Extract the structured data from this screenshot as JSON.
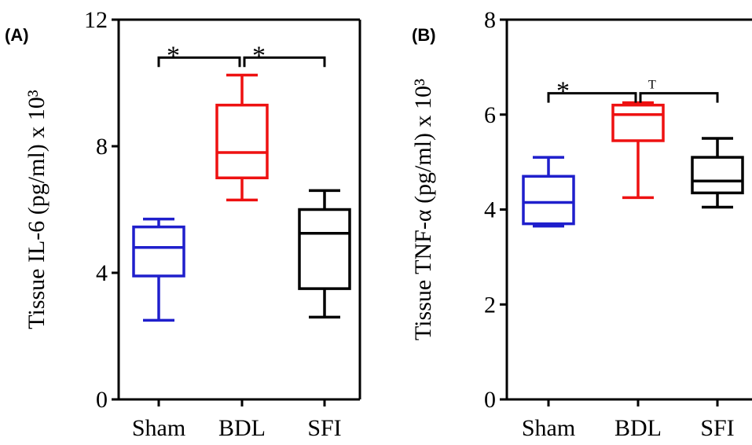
{
  "chart_data": [
    {
      "type": "box",
      "panel_label": "(A)",
      "ylabel": "Tissue IL-6 (pg/ml) x 10³",
      "ylim": [
        0,
        12
      ],
      "yticks": [
        0,
        4,
        8,
        12
      ],
      "categories": [
        "Sham",
        "BDL",
        "SFI"
      ],
      "colors": [
        "#1f1fcc",
        "#ee1111",
        "#000000"
      ],
      "boxes": [
        {
          "whisker_low": 2.5,
          "q1": 3.9,
          "median": 4.8,
          "q3": 5.45,
          "whisker_high": 5.7
        },
        {
          "whisker_low": 6.3,
          "q1": 7.0,
          "median": 7.8,
          "q3": 9.3,
          "whisker_high": 10.25
        },
        {
          "whisker_low": 2.6,
          "q1": 3.5,
          "median": 5.25,
          "q3": 6.0,
          "whisker_high": 6.6
        }
      ],
      "annotations": [
        {
          "from": 0,
          "to": 1,
          "y": 10.8,
          "label": "*"
        },
        {
          "from": 1,
          "to": 2,
          "y": 10.8,
          "label": "*"
        }
      ]
    },
    {
      "type": "box",
      "panel_label": "(B)",
      "ylabel": "Tissue TNF-α (pg/ml) x 10³",
      "ylim": [
        0,
        8
      ],
      "yticks": [
        0,
        2,
        4,
        6,
        8
      ],
      "categories": [
        "Sham",
        "BDL",
        "SFI"
      ],
      "colors": [
        "#1f1fcc",
        "#ee1111",
        "#000000"
      ],
      "boxes": [
        {
          "whisker_low": 3.65,
          "q1": 3.7,
          "median": 4.15,
          "q3": 4.7,
          "whisker_high": 5.1
        },
        {
          "whisker_low": 4.25,
          "q1": 5.45,
          "median": 6.0,
          "q3": 6.2,
          "whisker_high": 6.25
        },
        {
          "whisker_low": 4.05,
          "q1": 4.35,
          "median": 4.6,
          "q3": 5.1,
          "whisker_high": 5.5
        }
      ],
      "annotations": [
        {
          "from": 0,
          "to": 1,
          "y": 6.45,
          "label": "*"
        },
        {
          "from": 1,
          "to": 2,
          "y": 6.45,
          "label": "T"
        }
      ]
    }
  ]
}
